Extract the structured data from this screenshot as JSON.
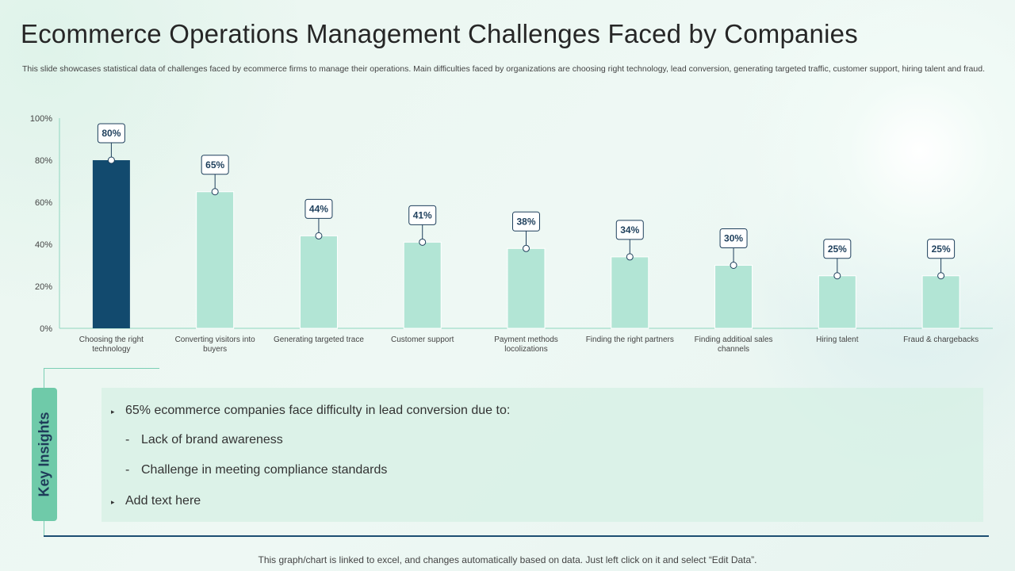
{
  "title": "Ecommerce Operations Management Challenges Faced by Companies",
  "subtitle": "This slide showcases statistical data of challenges faced by ecommerce firms to manage their operations. Main difficulties faced by organizations are choosing right technology, lead conversion, generating targeted traffic, customer support, hiring talent and fraud.",
  "chart_data": {
    "type": "bar",
    "title": "",
    "xlabel": "",
    "ylabel": "",
    "ylim": [
      0,
      100
    ],
    "yticks": [
      "0%",
      "20%",
      "40%",
      "60%",
      "80%",
      "100%"
    ],
    "categories": [
      [
        "Choosing the right",
        "technology"
      ],
      [
        "Converting visitors into",
        "buyers"
      ],
      [
        "Generating targeted trace"
      ],
      [
        "Customer support"
      ],
      [
        "Payment methods",
        "locolizations"
      ],
      [
        "Finding the right partners"
      ],
      [
        "Finding additioal sales",
        "channels"
      ],
      [
        "Hiring talent"
      ],
      [
        "Fraud & chargebacks"
      ]
    ],
    "values": [
      80,
      65,
      44,
      41,
      38,
      34,
      30,
      25,
      25
    ],
    "labels": [
      "80%",
      "65%",
      "44%",
      "41%",
      "38%",
      "34%",
      "30%",
      "25%",
      "25%"
    ],
    "highlight_index": 0,
    "colors": {
      "highlight": "#124a6e",
      "bar": "#b2e5d5",
      "axis": "#8fd6bf",
      "label_border": "#1e3f5c"
    }
  },
  "key_insights": {
    "tab_label": "Key Insights",
    "items": [
      {
        "kind": "bullet",
        "text": "65% ecommerce companies face difficulty in lead conversion due to:"
      },
      {
        "kind": "sub",
        "text": "Lack of brand awareness"
      },
      {
        "kind": "sub",
        "text": "Challenge in meeting compliance standards"
      },
      {
        "kind": "bullet",
        "text": "Add text here"
      }
    ],
    "bullet_marker": "▸",
    "sub_marker": "-"
  },
  "footer": "This graph/chart is linked to excel, and changes automatically based on data. Just left click on it and select “Edit Data”."
}
